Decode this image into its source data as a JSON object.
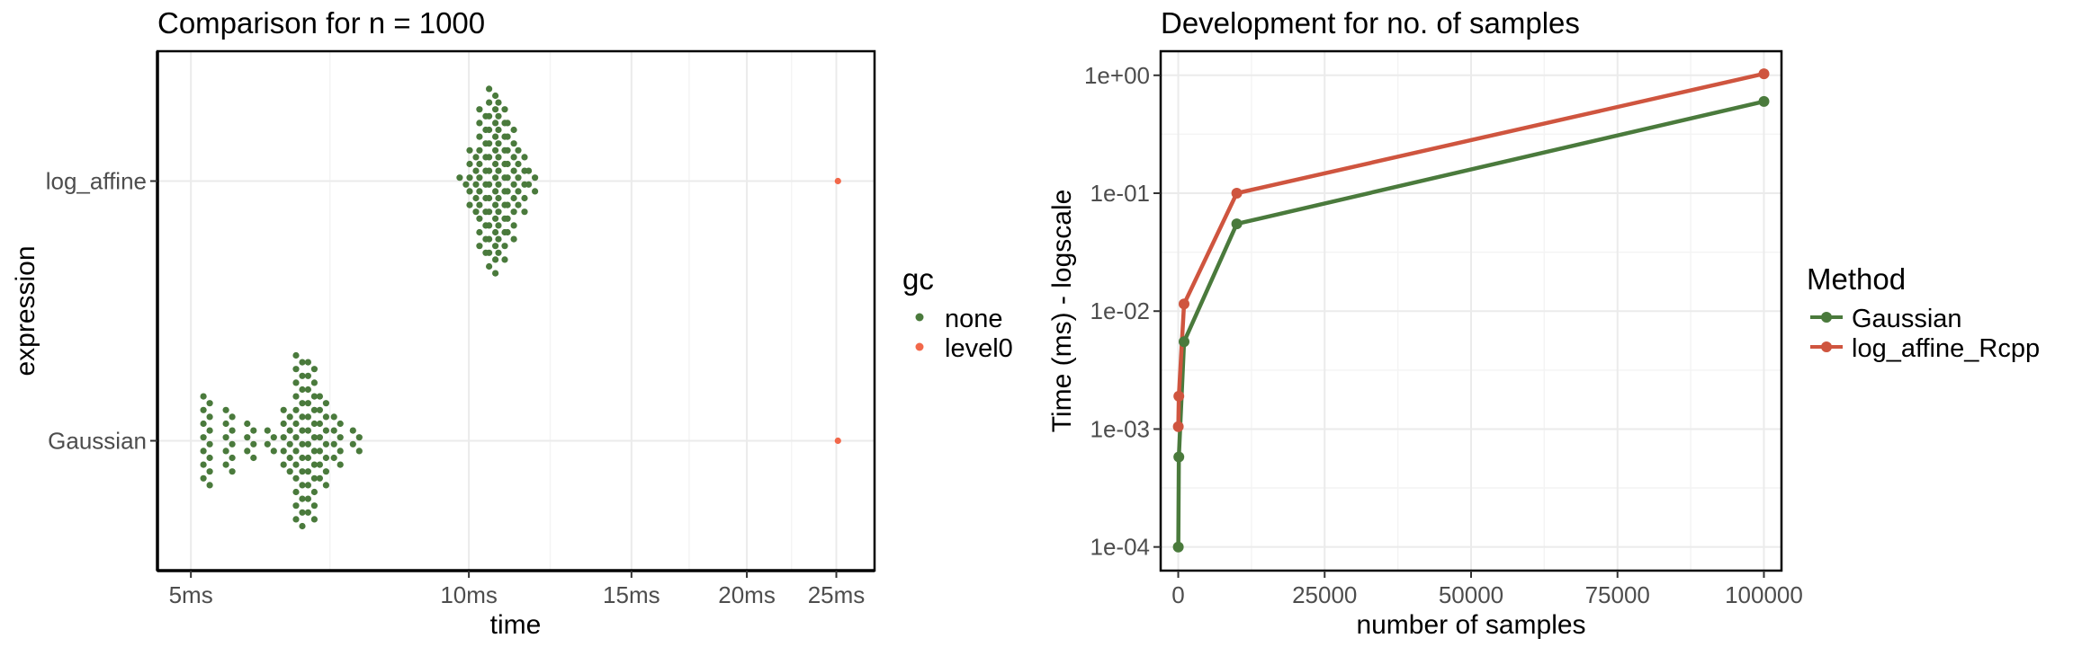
{
  "chart_data": [
    {
      "type": "scatter",
      "title": "Comparison for n = 1000",
      "xlabel": "time",
      "ylabel": "expression",
      "x_scale": "log",
      "xlim_ms": [
        4.6,
        27.5
      ],
      "x_ticks": [
        {
          "value": 5,
          "label": "5ms"
        },
        {
          "value": 10,
          "label": "10ms"
        },
        {
          "value": 15,
          "label": "15ms"
        },
        {
          "value": 20,
          "label": "20ms"
        },
        {
          "value": 25,
          "label": "25ms"
        }
      ],
      "categories": [
        "Gaussian",
        "log_affine"
      ],
      "legend": {
        "title": "gc",
        "position": "right"
      },
      "grid": true,
      "series": [
        {
          "name": "none",
          "color": "#4a7a3c",
          "points": [
            {
              "category": "Gaussian",
              "x_ms": 5.2,
              "count": 14
            },
            {
              "category": "Gaussian",
              "x_ms": 5.5,
              "count": 10
            },
            {
              "category": "Gaussian",
              "x_ms": 5.8,
              "count": 6
            },
            {
              "category": "Gaussian",
              "x_ms": 6.1,
              "count": 4
            },
            {
              "category": "Gaussian",
              "x_ms": 6.35,
              "count": 10
            },
            {
              "category": "Gaussian",
              "x_ms": 6.55,
              "count": 26
            },
            {
              "category": "Gaussian",
              "x_ms": 6.75,
              "count": 24
            },
            {
              "category": "Gaussian",
              "x_ms": 6.95,
              "count": 14
            },
            {
              "category": "Gaussian",
              "x_ms": 7.2,
              "count": 8
            },
            {
              "category": "Gaussian",
              "x_ms": 7.55,
              "count": 4
            },
            {
              "category": "log_affine",
              "x_ms": 9.85,
              "count": 2
            },
            {
              "category": "log_affine",
              "x_ms": 10.1,
              "count": 10
            },
            {
              "category": "log_affine",
              "x_ms": 10.35,
              "count": 22
            },
            {
              "category": "log_affine",
              "x_ms": 10.6,
              "count": 28
            },
            {
              "category": "log_affine",
              "x_ms": 10.85,
              "count": 24
            },
            {
              "category": "log_affine",
              "x_ms": 11.1,
              "count": 18
            },
            {
              "category": "log_affine",
              "x_ms": 11.4,
              "count": 10
            },
            {
              "category": "log_affine",
              "x_ms": 11.7,
              "count": 4
            }
          ]
        },
        {
          "name": "level0",
          "color": "#f2684a",
          "points": [
            {
              "category": "Gaussian",
              "x_ms": 25.1,
              "count": 1
            },
            {
              "category": "log_affine",
              "x_ms": 25.1,
              "count": 1
            }
          ]
        }
      ]
    },
    {
      "type": "line",
      "title": "Development for no. of samples",
      "xlabel": "number of samples",
      "ylabel": "Time (ms) - logscale",
      "y_scale": "log",
      "xlim": [
        -3000,
        103000
      ],
      "ylim": [
        6.3e-05,
        1.6
      ],
      "x_ticks": [
        {
          "value": 0,
          "label": "0"
        },
        {
          "value": 25000,
          "label": "25000"
        },
        {
          "value": 50000,
          "label": "50000"
        },
        {
          "value": 75000,
          "label": "75000"
        },
        {
          "value": 100000,
          "label": "100000"
        }
      ],
      "y_ticks": [
        {
          "value": 0.0001,
          "label": "1e-04"
        },
        {
          "value": 0.001,
          "label": "1e-03"
        },
        {
          "value": 0.01,
          "label": "1e-02"
        },
        {
          "value": 0.1,
          "label": "1e-01"
        },
        {
          "value": 1,
          "label": "1e+00"
        }
      ],
      "legend": {
        "title": "Method",
        "position": "right"
      },
      "grid": true,
      "series": [
        {
          "name": "Gaussian",
          "color": "#4a7a3c",
          "x": [
            10,
            100,
            1000,
            10000,
            100000
          ],
          "values": [
            0.0001,
            0.00058,
            0.0055,
            0.055,
            0.6
          ]
        },
        {
          "name": "log_affine_Rcpp",
          "color": "#cf553f",
          "x": [
            10,
            100,
            1000,
            10000,
            100000
          ],
          "values": [
            0.00105,
            0.0019,
            0.0115,
            0.1,
            1.03
          ]
        }
      ]
    }
  ]
}
